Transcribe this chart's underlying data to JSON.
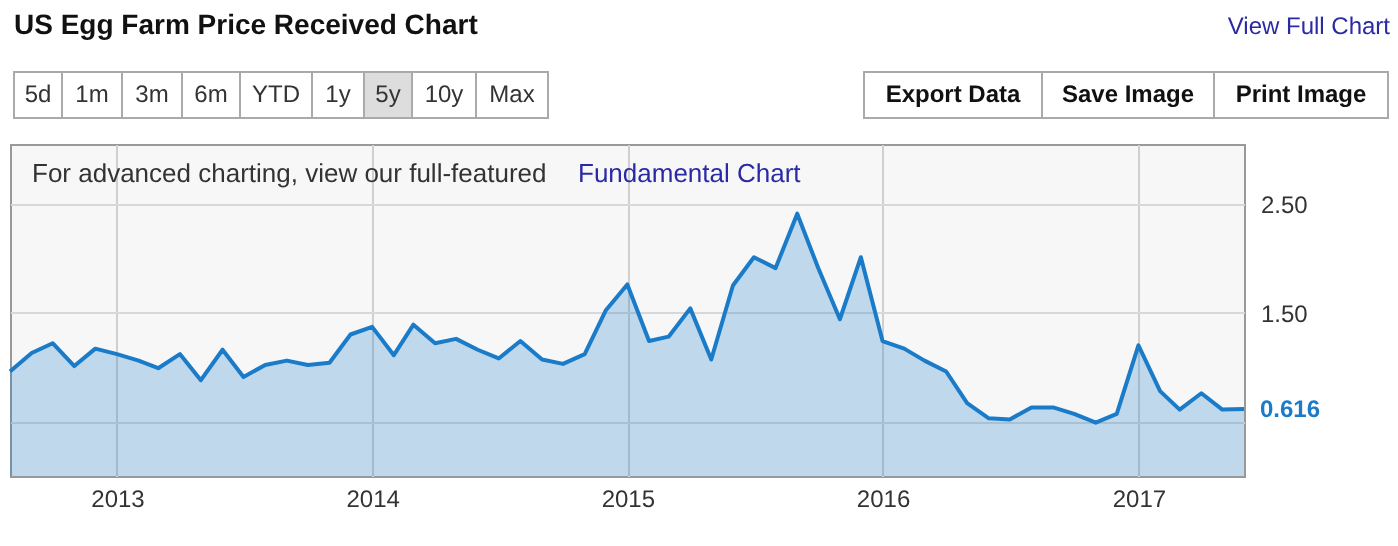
{
  "chart_data": {
    "type": "area",
    "title": "US Egg Farm Price Received Chart",
    "x": [
      "2012-08",
      "2012-09",
      "2012-10",
      "2012-11",
      "2012-12",
      "2013-01",
      "2013-02",
      "2013-03",
      "2013-04",
      "2013-05",
      "2013-06",
      "2013-07",
      "2013-08",
      "2013-09",
      "2013-10",
      "2013-11",
      "2013-12",
      "2014-01",
      "2014-02",
      "2014-03",
      "2014-04",
      "2014-05",
      "2014-06",
      "2014-07",
      "2014-08",
      "2014-09",
      "2014-10",
      "2014-11",
      "2014-12",
      "2015-01",
      "2015-02",
      "2015-03",
      "2015-04",
      "2015-05",
      "2015-06",
      "2015-07",
      "2015-08",
      "2015-09",
      "2015-10",
      "2015-11",
      "2015-12",
      "2016-01",
      "2016-02",
      "2016-03",
      "2016-04",
      "2016-05",
      "2016-06",
      "2016-07",
      "2016-08",
      "2016-09",
      "2016-10",
      "2016-11",
      "2016-12",
      "2017-01",
      "2017-02",
      "2017-03",
      "2017-04",
      "2017-05",
      "2017-06"
    ],
    "series": [
      {
        "color": "#1a7bc9",
        "values": [
          0.96,
          1.13,
          1.22,
          1.01,
          1.17,
          1.12,
          1.06,
          0.99,
          1.12,
          0.88,
          1.16,
          0.91,
          1.02,
          1.06,
          1.02,
          1.04,
          1.3,
          1.37,
          1.11,
          1.39,
          1.22,
          1.26,
          1.16,
          1.08,
          1.24,
          1.07,
          1.03,
          1.12,
          1.52,
          1.76,
          1.24,
          1.28,
          1.54,
          1.07,
          1.75,
          2.01,
          1.91,
          2.41,
          1.91,
          1.44,
          2.01,
          1.24,
          1.17,
          1.06,
          0.96,
          0.67,
          0.53,
          0.52,
          0.63,
          0.63,
          0.57,
          0.49,
          0.57,
          1.2,
          0.78,
          0.61,
          0.76,
          0.61,
          0.616
        ]
      }
    ],
    "xlim": [
      "2012-08",
      "2017-06"
    ],
    "xticks": [
      "2013",
      "2014",
      "2015",
      "2016",
      "2017"
    ],
    "ylim": [
      0,
      3.05
    ],
    "yticks": [
      {
        "value": 0.5,
        "label": null
      },
      {
        "value": 1.5,
        "label": "1.50"
      },
      {
        "value": 2.5,
        "label": "2.50"
      }
    ],
    "grid": true,
    "annotations": [
      "View Full Chart",
      "5d",
      "1m",
      "3m",
      "6m",
      "YTD",
      "1y",
      "5y",
      "10y",
      "Max",
      "Export Data",
      "Save Image",
      "Print Image",
      "For advanced charting, view our full-featured",
      "Fundamental Chart",
      {
        "text": "0.616",
        "x": "2017-06",
        "y": 0.616
      }
    ]
  }
}
